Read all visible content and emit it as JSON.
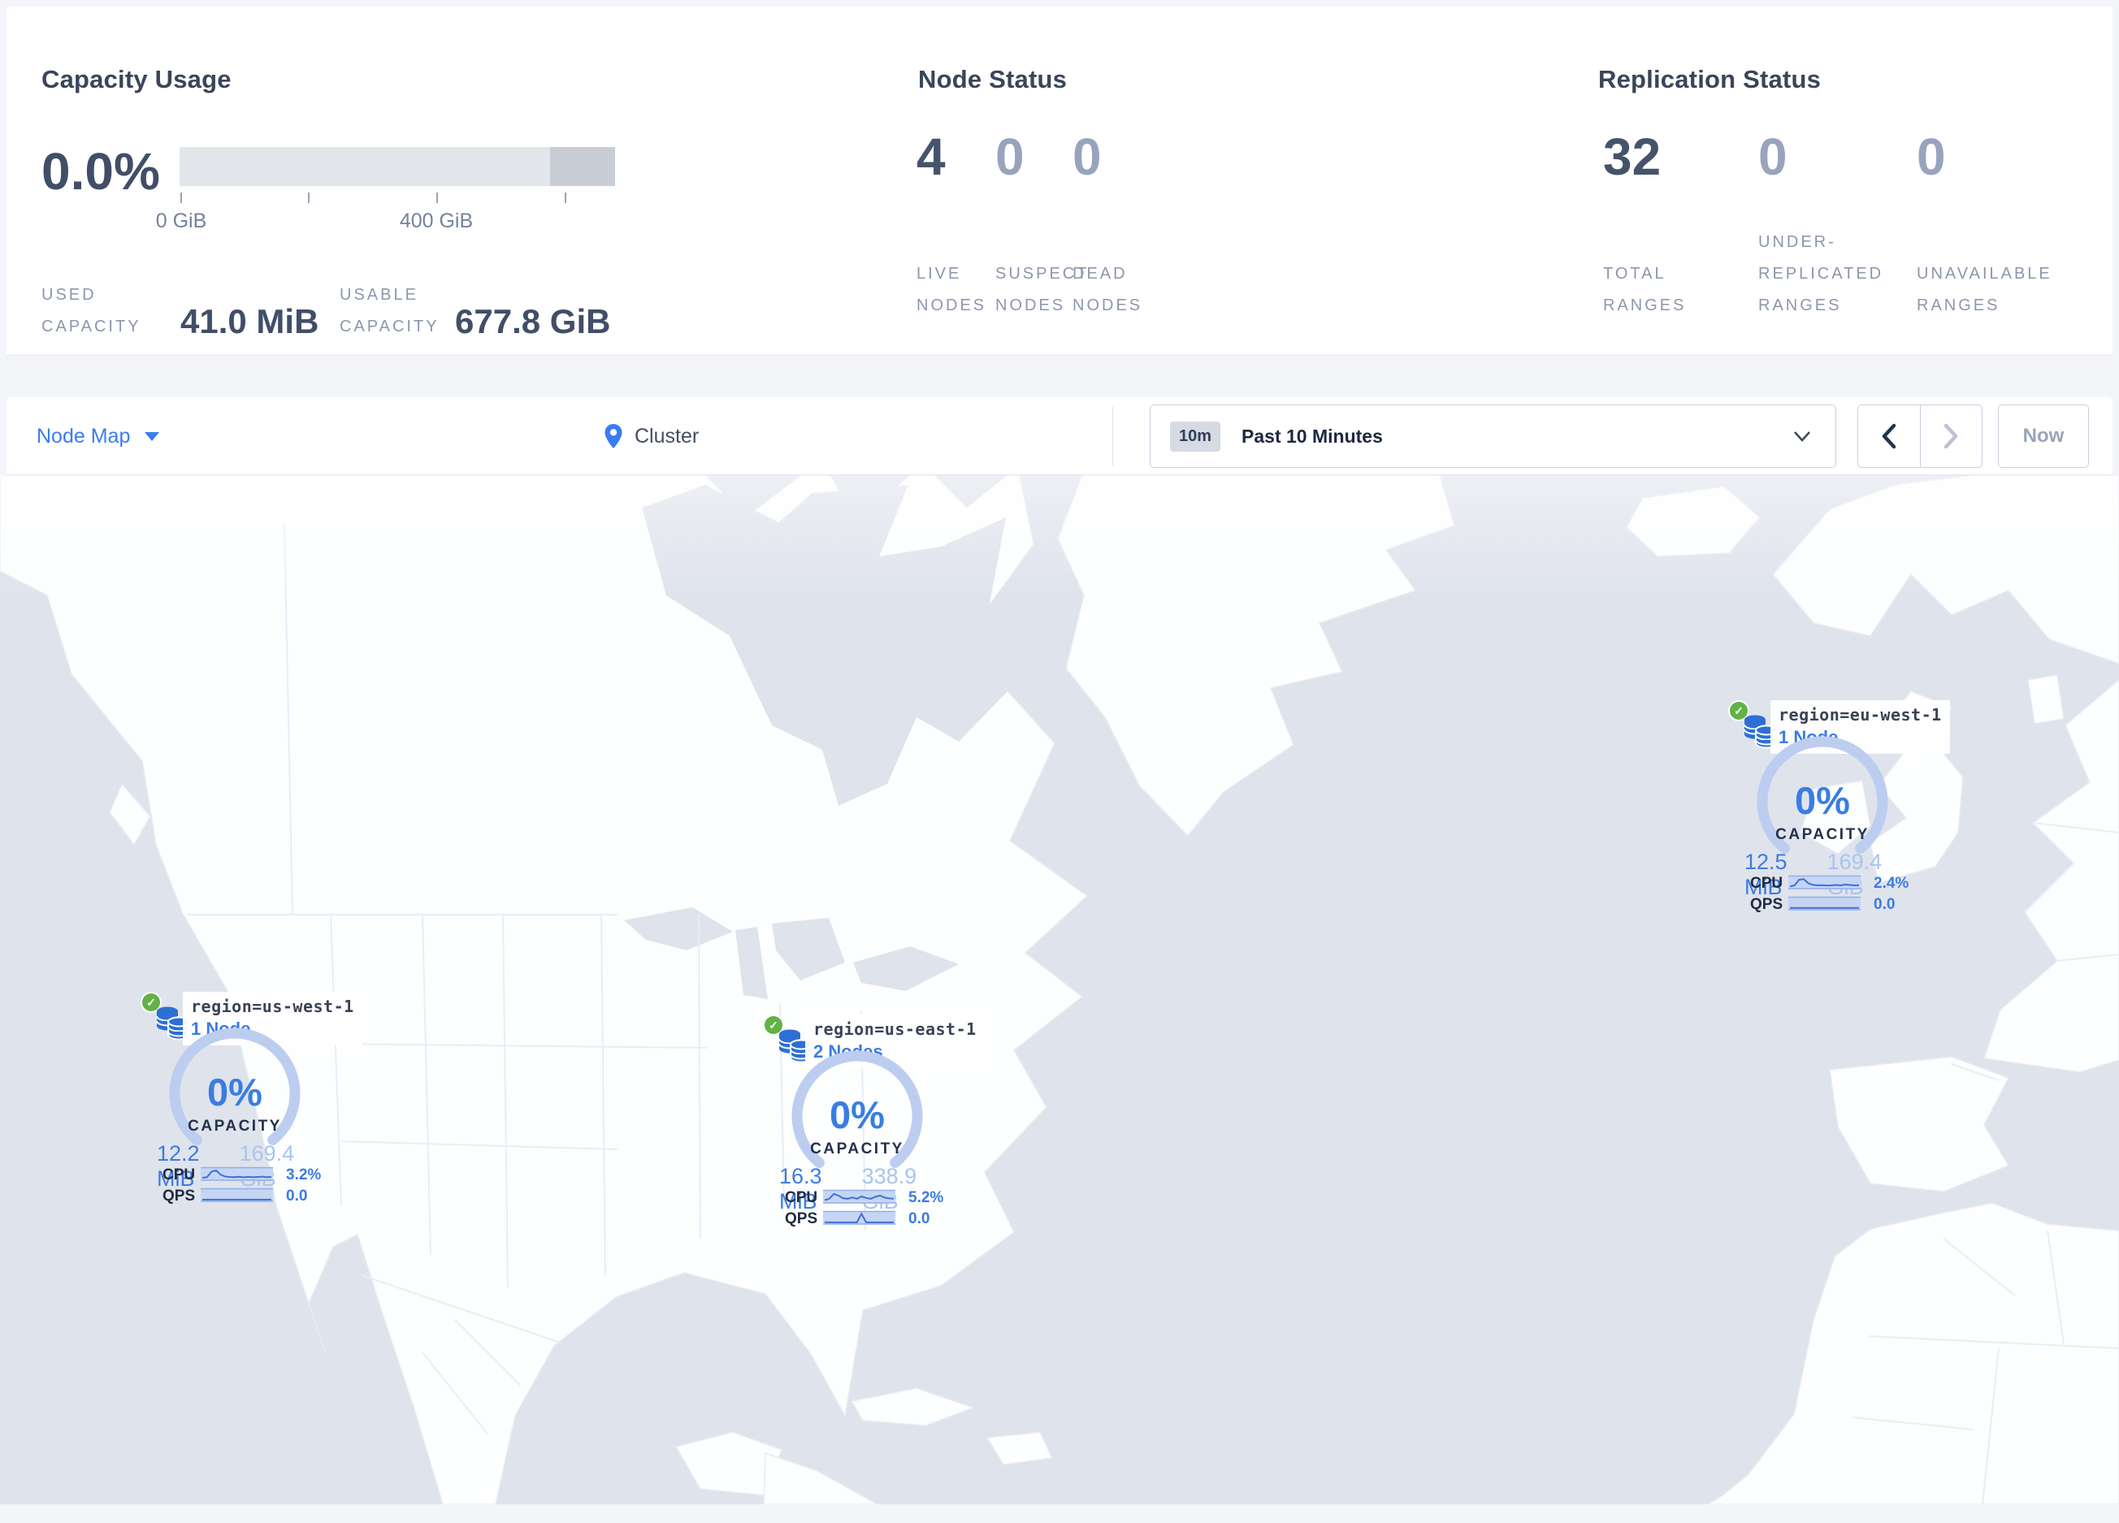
{
  "header": {
    "capacity": {
      "title": "Capacity Usage",
      "percent": "0.0%",
      "ticks": [
        "0 GiB",
        "400 GiB"
      ],
      "used_label": "USED CAPACITY",
      "used_value": "41.0 MiB",
      "usable_label": "USABLE CAPACITY",
      "usable_value": "677.8 GiB"
    },
    "node_status": {
      "title": "Node Status",
      "stats": [
        {
          "value": "4",
          "label": "LIVE NODES"
        },
        {
          "value": "0",
          "label": "SUSPECT NODES"
        },
        {
          "value": "0",
          "label": "DEAD NODES"
        }
      ]
    },
    "replication": {
      "title": "Replication Status",
      "stats": [
        {
          "value": "32",
          "label": "TOTAL RANGES"
        },
        {
          "value": "0",
          "label": "UNDER-REPLICATED RANGES"
        },
        {
          "value": "0",
          "label": "UNAVAILABLE RANGES"
        }
      ]
    }
  },
  "toolbar": {
    "view": "Node Map",
    "breadcrumb": "Cluster",
    "time_badge": "10m",
    "time_label": "Past 10 Minutes",
    "now": "Now"
  },
  "markers": [
    {
      "region": "region=us-west-1",
      "nodes": "1 Node",
      "percent": "0%",
      "capacity_label": "CAPACITY",
      "used": "12.2 MiB",
      "total": "169.4 GiB",
      "cpu_label": "CPU",
      "cpu_value": "3.2%",
      "qps_label": "QPS",
      "qps_value": "0.0",
      "cpu_spark": [
        0.12,
        0.18,
        0.72,
        0.85,
        0.42,
        0.24,
        0.2,
        0.18,
        0.22,
        0.17,
        0.21,
        0.18,
        0.2,
        0.23,
        0.18,
        0.2
      ],
      "qps_spark": [
        0.05,
        0.05,
        0.05,
        0.05,
        0.05,
        0.05,
        0.05,
        0.05,
        0.05,
        0.05,
        0.05,
        0.05,
        0.05,
        0.05,
        0.05,
        0.05
      ]
    },
    {
      "region": "region=us-east-1",
      "nodes": "2 Nodes",
      "percent": "0%",
      "capacity_label": "CAPACITY",
      "used": "16.3 MiB",
      "total": "338.9 GiB",
      "cpu_label": "CPU",
      "cpu_value": "5.2%",
      "qps_label": "QPS",
      "qps_value": "0.0",
      "cpu_spark": [
        0.15,
        0.3,
        0.78,
        0.6,
        0.35,
        0.3,
        0.42,
        0.3,
        0.52,
        0.38,
        0.3,
        0.48,
        0.62,
        0.42,
        0.33,
        0.3
      ],
      "qps_spark": [
        0.05,
        0.05,
        0.05,
        0.05,
        0.05,
        0.05,
        0.05,
        0.05,
        0.9,
        0.05,
        0.05,
        0.05,
        0.05,
        0.05,
        0.05,
        0.05
      ]
    },
    {
      "region": "region=eu-west-1",
      "nodes": "1 Node",
      "percent": "0%",
      "capacity_label": "CAPACITY",
      "used": "12.5 MiB",
      "total": "169.4 GiB",
      "cpu_label": "CPU",
      "cpu_value": "2.4%",
      "qps_label": "QPS",
      "qps_value": "0.0",
      "cpu_spark": [
        0.1,
        0.2,
        0.75,
        0.82,
        0.4,
        0.25,
        0.2,
        0.22,
        0.18,
        0.2,
        0.24,
        0.2,
        0.28,
        0.24,
        0.2,
        0.22
      ],
      "qps_spark": [
        0.06,
        0.06,
        0.06,
        0.06,
        0.06,
        0.06,
        0.06,
        0.06,
        0.06,
        0.06,
        0.06,
        0.06,
        0.06,
        0.06,
        0.06,
        0.06
      ]
    }
  ],
  "colors": {
    "accent_blue": "#3b7ce2",
    "light_blue": "#a9c4ef",
    "gauge_arc": "#bccdf0",
    "dark_text": "#3b4559",
    "muted_text": "#8c96ad",
    "muted_number": "#98a3bd",
    "green_check": "#62b245",
    "db_icon_blue": "#2e6fd6",
    "ocean": "#dfe3ec",
    "land": "#fdfefe",
    "land_border": "#e7ebf5",
    "bar_track": "#e2e5ea",
    "bar_reserved": "#c9cdd6"
  }
}
